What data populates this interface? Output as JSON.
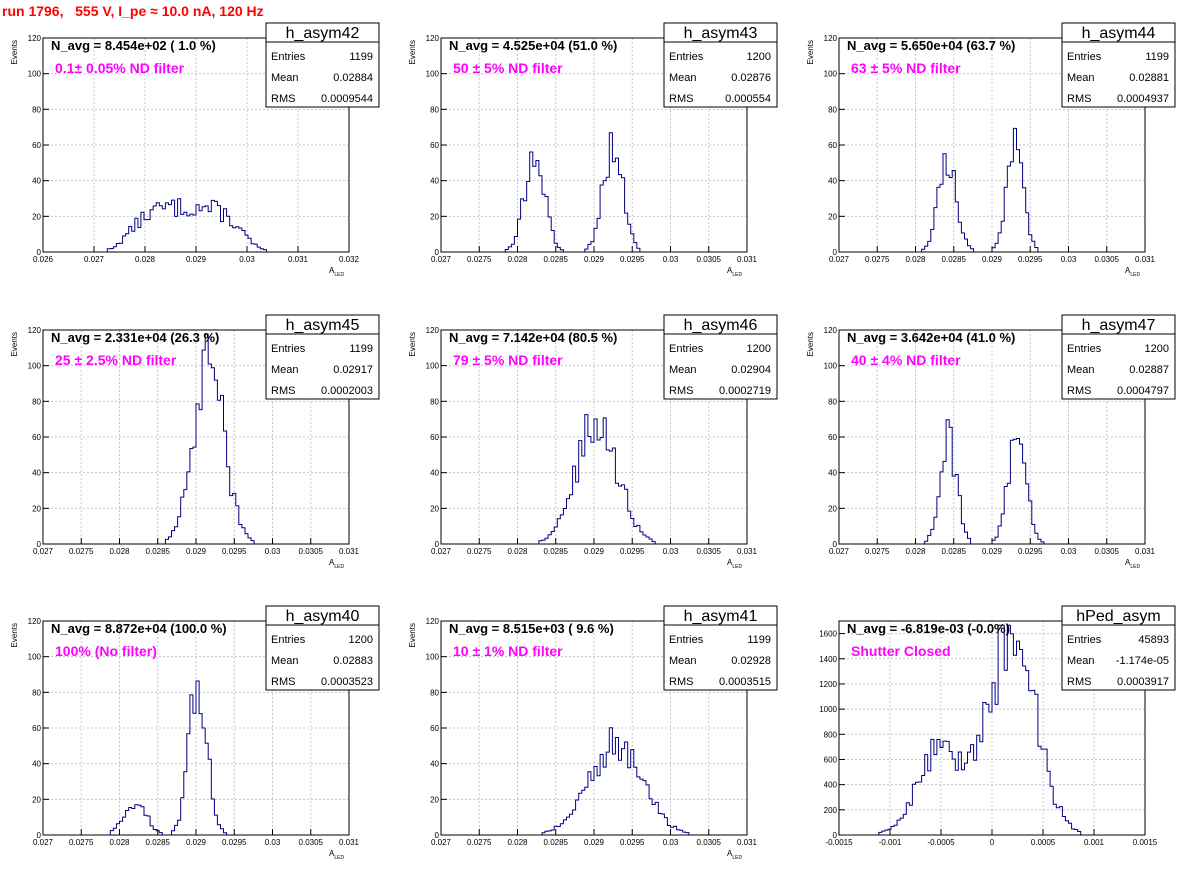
{
  "header": {
    "run_title": "run 1796,   555 V, I_pe ≈ 10.0 nA, 120 Hz"
  },
  "colors": {
    "histogram": "#000080",
    "title": "#ff0000",
    "filter_label": "#ff00ff",
    "grid": "#c8c8c8"
  },
  "chart_data": [
    {
      "type": "histogram",
      "name": "h_asym42",
      "navg": "N_avg = 8.454e+02 ( 1.0 %)",
      "filter": "0.1± 0.05% ND filter",
      "stats": {
        "entries": "1199",
        "mean": "0.02884",
        "rms": "0.0009544"
      },
      "xlabel_main": "A",
      "xlabel_sub": "LED",
      "ylabel": "Events",
      "xlim": [
        0.026,
        0.032
      ],
      "ylim": [
        0,
        120
      ],
      "xticks": [
        "0.026",
        "0.027",
        "0.028",
        "0.029",
        "0.03",
        "0.031",
        "0.032"
      ],
      "yticks": [
        "0",
        "20",
        "40",
        "60",
        "80",
        "100",
        "120"
      ],
      "peaks": [
        {
          "mu": 0.0288,
          "sigma": 0.0009,
          "amp": 25
        }
      ],
      "flat": true
    },
    {
      "type": "histogram",
      "name": "h_asym43",
      "navg": "N_avg = 4.525e+04 (51.0 %)",
      "filter": "50 ± 5% ND filter",
      "stats": {
        "entries": "1200",
        "mean": "0.02876",
        "rms": "0.000554"
      },
      "xlabel_main": "A",
      "xlabel_sub": "LED",
      "ylabel": "Events",
      "xlim": [
        0.027,
        0.031
      ],
      "ylim": [
        0,
        120
      ],
      "xticks": [
        "0.027",
        "0.0275",
        "0.028",
        "0.0285",
        "0.029",
        "0.0295",
        "0.03",
        "0.0305",
        "0.031"
      ],
      "yticks": [
        "0",
        "20",
        "40",
        "60",
        "80",
        "100",
        "120"
      ],
      "peaks": [
        {
          "mu": 0.02822,
          "sigma": 0.00013,
          "amp": 55
        },
        {
          "mu": 0.02925,
          "sigma": 0.00013,
          "amp": 60
        }
      ]
    },
    {
      "type": "histogram",
      "name": "h_asym44",
      "navg": "N_avg = 5.650e+04 (63.7 %)",
      "filter": "63 ± 5% ND filter",
      "stats": {
        "entries": "1199",
        "mean": "0.02881",
        "rms": "0.0004937"
      },
      "xlabel_main": "A",
      "xlabel_sub": "LED",
      "ylabel": "Events",
      "xlim": [
        0.027,
        0.031
      ],
      "ylim": [
        0,
        120
      ],
      "xticks": [
        "0.027",
        "0.0275",
        "0.028",
        "0.0285",
        "0.029",
        "0.0295",
        "0.03",
        "0.0305",
        "0.031"
      ],
      "yticks": [
        "0",
        "20",
        "40",
        "60",
        "80",
        "100",
        "120"
      ],
      "peaks": [
        {
          "mu": 0.02842,
          "sigma": 0.00012,
          "amp": 52
        },
        {
          "mu": 0.0293,
          "sigma": 0.00011,
          "amp": 58
        }
      ]
    },
    {
      "type": "histogram",
      "name": "h_asym45",
      "navg": "N_avg = 2.331e+04 (26.3 %)",
      "filter": "25 ± 2.5% ND filter",
      "stats": {
        "entries": "1199",
        "mean": "0.02917",
        "rms": "0.0002003"
      },
      "xlabel_main": "A",
      "xlabel_sub": "LED",
      "ylabel": "Events",
      "xlim": [
        0.027,
        0.031
      ],
      "ylim": [
        0,
        120
      ],
      "xticks": [
        "0.027",
        "0.0275",
        "0.028",
        "0.0285",
        "0.029",
        "0.0295",
        "0.03",
        "0.0305",
        "0.031"
      ],
      "yticks": [
        "0",
        "20",
        "40",
        "60",
        "80",
        "100",
        "120"
      ],
      "peaks": [
        {
          "mu": 0.02917,
          "sigma": 0.0002,
          "amp": 100
        }
      ]
    },
    {
      "type": "histogram",
      "name": "h_asym46",
      "navg": "N_avg = 7.142e+04 (80.5 %)",
      "filter": "79 ± 5% ND filter",
      "stats": {
        "entries": "1200",
        "mean": "0.02904",
        "rms": "0.0002719"
      },
      "xlabel_main": "A",
      "xlabel_sub": "LED",
      "ylabel": "Events",
      "xlim": [
        0.027,
        0.031
      ],
      "ylim": [
        0,
        120
      ],
      "xticks": [
        "0.027",
        "0.0275",
        "0.028",
        "0.0285",
        "0.029",
        "0.0295",
        "0.03",
        "0.0305",
        "0.031"
      ],
      "yticks": [
        "0",
        "20",
        "40",
        "60",
        "80",
        "100",
        "120"
      ],
      "peaks": [
        {
          "mu": 0.02904,
          "sigma": 0.00027,
          "amp": 68
        }
      ]
    },
    {
      "type": "histogram",
      "name": "h_asym47",
      "navg": "N_avg = 3.642e+04 (41.0 %)",
      "filter": "40 ± 4% ND filter",
      "stats": {
        "entries": "1200",
        "mean": "0.02887",
        "rms": "0.0004797"
      },
      "xlabel_main": "A",
      "xlabel_sub": "LED",
      "ylabel": "Events",
      "xlim": [
        0.027,
        0.031
      ],
      "ylim": [
        0,
        120
      ],
      "xticks": [
        "0.027",
        "0.0275",
        "0.028",
        "0.0285",
        "0.029",
        "0.0295",
        "0.03",
        "0.0305",
        "0.031"
      ],
      "yticks": [
        "0",
        "20",
        "40",
        "60",
        "80",
        "100",
        "120"
      ],
      "peaks": [
        {
          "mu": 0.02843,
          "sigma": 0.00011,
          "amp": 60
        },
        {
          "mu": 0.02933,
          "sigma": 0.00012,
          "amp": 58
        }
      ]
    },
    {
      "type": "histogram",
      "name": "h_asym40",
      "navg": "N_avg = 8.872e+04 (100.0 %)",
      "filter": "100% (No filter)",
      "stats": {
        "entries": "1200",
        "mean": "0.02883",
        "rms": "0.0003523"
      },
      "xlabel_main": "A",
      "xlabel_sub": "LED",
      "ylabel": "Events",
      "xlim": [
        0.027,
        0.031
      ],
      "ylim": [
        0,
        120
      ],
      "xticks": [
        "0.027",
        "0.0275",
        "0.028",
        "0.0285",
        "0.029",
        "0.0295",
        "0.03",
        "0.0305",
        "0.031"
      ],
      "yticks": [
        "0",
        "20",
        "40",
        "60",
        "80",
        "100",
        "120"
      ],
      "peaks": [
        {
          "mu": 0.0282,
          "sigma": 0.00015,
          "amp": 18
        },
        {
          "mu": 0.02903,
          "sigma": 0.00012,
          "amp": 85
        }
      ]
    },
    {
      "type": "histogram",
      "name": "h_asym41",
      "navg": "N_avg = 8.515e+03 ( 9.6 %)",
      "filter": "10 ± 1% ND filter",
      "stats": {
        "entries": "1199",
        "mean": "0.02928",
        "rms": "0.0003515"
      },
      "xlabel_main": "A",
      "xlabel_sub": "LED",
      "ylabel": "Events",
      "xlim": [
        0.027,
        0.031
      ],
      "ylim": [
        0,
        120
      ],
      "xticks": [
        "0.027",
        "0.0275",
        "0.028",
        "0.0285",
        "0.029",
        "0.0295",
        "0.03",
        "0.0305",
        "0.031"
      ],
      "yticks": [
        "0",
        "20",
        "40",
        "60",
        "80",
        "100",
        "120"
      ],
      "peaks": [
        {
          "mu": 0.02928,
          "sigma": 0.00035,
          "amp": 50
        }
      ]
    },
    {
      "type": "histogram",
      "name": "hPed_asym",
      "navg": "N_avg = -6.819e-03 (-0.0%)",
      "filter": "Shutter Closed",
      "stats": {
        "entries": "45893",
        "mean": "-1.174e-05",
        "rms": "0.0003917"
      },
      "xlabel_main": "",
      "xlabel_sub": "",
      "ylabel": "",
      "xlim": [
        -0.0015,
        0.0015
      ],
      "ylim": [
        0,
        1700
      ],
      "xticks": [
        "-0.0015",
        "-0.001",
        "-0.0005",
        "0",
        "0.0005",
        "0.001",
        "0.0015"
      ],
      "yticks": [
        "0",
        "200",
        "400",
        "600",
        "800",
        "1000",
        "1200",
        "1400",
        "1600"
      ],
      "peaks": [
        {
          "mu": -0.0005,
          "sigma": 0.00022,
          "amp": 700
        },
        {
          "mu": 0.0002,
          "sigma": 0.00023,
          "amp": 1600
        }
      ]
    }
  ]
}
